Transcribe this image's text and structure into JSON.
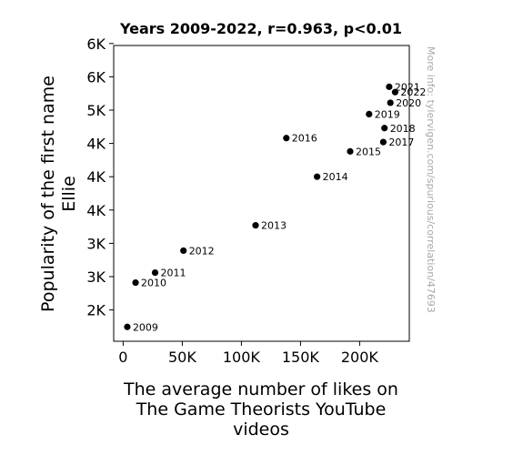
{
  "chart_data": {
    "type": "scatter",
    "title": "Years 2009-2022, r=0.963, p<0.01",
    "xlabel_lines": [
      "The average number of likes on",
      "The Game Theorists YouTube",
      "videos"
    ],
    "ylabel_lines": [
      "Popularity of the first name",
      "Ellie"
    ],
    "side_note": "More info: tylervigen.com/spurious/correlation/47693",
    "xlim": [
      -8000,
      242000
    ],
    "ylim": [
      1530,
      5970
    ],
    "x_ticks": [
      {
        "value": 0,
        "label": "0"
      },
      {
        "value": 50000,
        "label": "50K"
      },
      {
        "value": 100000,
        "label": "100K"
      },
      {
        "value": 150000,
        "label": "150K"
      },
      {
        "value": 200000,
        "label": "200K"
      }
    ],
    "y_ticks": [
      {
        "value": 2000,
        "label": "2K"
      },
      {
        "value": 2500,
        "label": "3K"
      },
      {
        "value": 3000,
        "label": "3K"
      },
      {
        "value": 3500,
        "label": "4K"
      },
      {
        "value": 4000,
        "label": "4K"
      },
      {
        "value": 4500,
        "label": "4K"
      },
      {
        "value": 5000,
        "label": "5K"
      },
      {
        "value": 5500,
        "label": "6K"
      },
      {
        "value": 6000,
        "label": "6K"
      }
    ],
    "points": [
      {
        "label": "2009",
        "x": 3500,
        "y": 1745
      },
      {
        "label": "2010",
        "x": 10500,
        "y": 2410
      },
      {
        "label": "2011",
        "x": 27000,
        "y": 2560
      },
      {
        "label": "2012",
        "x": 51000,
        "y": 2890
      },
      {
        "label": "2013",
        "x": 112000,
        "y": 3270
      },
      {
        "label": "2014",
        "x": 164000,
        "y": 4000
      },
      {
        "label": "2015",
        "x": 192000,
        "y": 4380
      },
      {
        "label": "2016",
        "x": 138000,
        "y": 4580
      },
      {
        "label": "2017",
        "x": 220000,
        "y": 4520
      },
      {
        "label": "2018",
        "x": 221000,
        "y": 4730
      },
      {
        "label": "2019",
        "x": 208000,
        "y": 4940
      },
      {
        "label": "2020",
        "x": 226000,
        "y": 5110
      },
      {
        "label": "2021",
        "x": 225000,
        "y": 5350
      },
      {
        "label": "2022",
        "x": 230000,
        "y": 5270
      }
    ],
    "marker_color": "#000000"
  }
}
